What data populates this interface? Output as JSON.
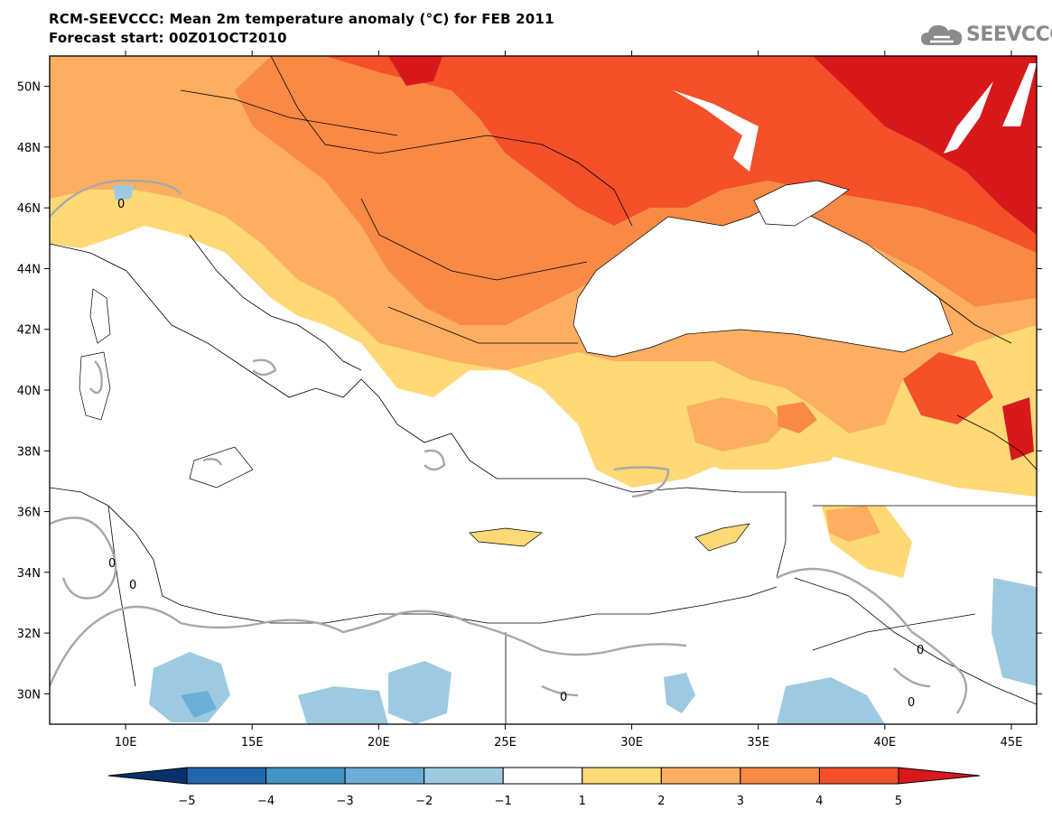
{
  "header": {
    "title_line1": "RCM-SEEVCCC: Mean 2m temperature anomaly (°C) for FEB 2011",
    "title_line2": "Forecast start: 00Z01OCT2010"
  },
  "logo": {
    "text": "SEEVCCC",
    "icon": "cloud-icon"
  },
  "map": {
    "lon_range": [
      7,
      46
    ],
    "lat_range": [
      29,
      51
    ],
    "lat_ticks": [
      {
        "value": 50,
        "label": "50N"
      },
      {
        "value": 48,
        "label": "48N"
      },
      {
        "value": 46,
        "label": "46N"
      },
      {
        "value": 44,
        "label": "44N"
      },
      {
        "value": 42,
        "label": "42N"
      },
      {
        "value": 40,
        "label": "40N"
      },
      {
        "value": 38,
        "label": "38N"
      },
      {
        "value": 36,
        "label": "36N"
      },
      {
        "value": 34,
        "label": "34N"
      },
      {
        "value": 32,
        "label": "32N"
      },
      {
        "value": 30,
        "label": "30N"
      }
    ],
    "lon_ticks": [
      {
        "value": 10,
        "label": "10E"
      },
      {
        "value": 15,
        "label": "15E"
      },
      {
        "value": 20,
        "label": "20E"
      },
      {
        "value": 25,
        "label": "25E"
      },
      {
        "value": 30,
        "label": "30E"
      },
      {
        "value": 35,
        "label": "35E"
      },
      {
        "value": 40,
        "label": "40E"
      },
      {
        "value": 45,
        "label": "45E"
      }
    ],
    "contour_labels": [
      "0",
      "0",
      "0",
      "0",
      "0",
      "0"
    ]
  },
  "colorbar": {
    "boundaries": [
      "−5",
      "−4",
      "−3",
      "−2",
      "−1",
      "1",
      "2",
      "3",
      "4",
      "5"
    ],
    "colors": [
      "#08306b",
      "#2166ac",
      "#4393c3",
      "#6baed6",
      "#9ecae1",
      "#ffffff",
      "#fed976",
      "#fdae61",
      "#f98a45",
      "#f4502a",
      "#d7191c"
    ]
  }
}
